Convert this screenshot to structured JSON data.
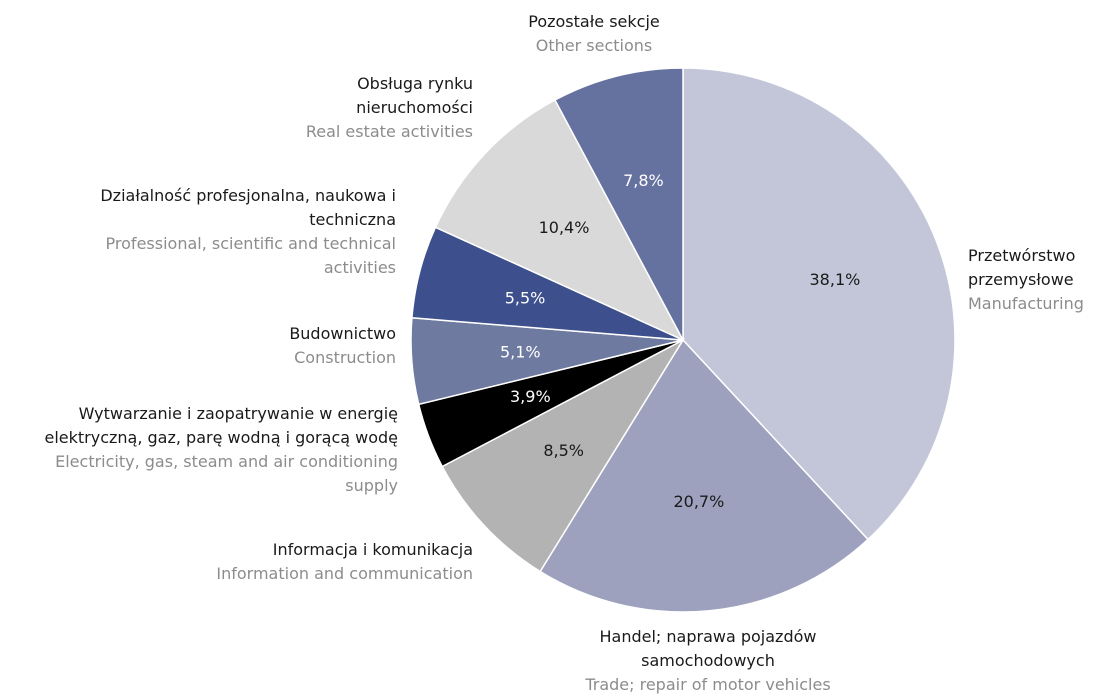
{
  "chart_data": {
    "type": "pie",
    "categories": [
      "Przetwórstwo przemysłowe",
      "Handel; naprawa pojazdów samochodowych",
      "Informacja i komunikacja",
      "Wytwarzanie i zaopatrywanie w energię elektryczną, gaz, parę wodną i gorącą wodę",
      "Budownictwo",
      "Działalność profesjonalna, naukowa i techniczna",
      "Obsługa rynku nieruchomości",
      "Pozostałe sekcje"
    ],
    "categories_en": [
      "Manufacturing",
      "Trade; repair of motor vehicles",
      "Information and communication",
      "Electricity, gas, steam and air conditioning supply",
      "Construction",
      "Professional, scientific and technical activities",
      "Real estate activities",
      "Other sections"
    ],
    "values": [
      38.1,
      20.7,
      8.5,
      3.9,
      5.1,
      5.5,
      10.4,
      7.8
    ],
    "value_labels": [
      "38,1%",
      "20,7%",
      "8,5%",
      "3,9%",
      "5,1%",
      "5,5%",
      "10,4%",
      "7,8%"
    ],
    "colors": [
      "#c3c6d8",
      "#9da1bd",
      "#b3b3b3",
      "#000000",
      "#6e7aa0",
      "#3d4f8c",
      "#d9d9d9",
      "#65719f"
    ]
  }
}
